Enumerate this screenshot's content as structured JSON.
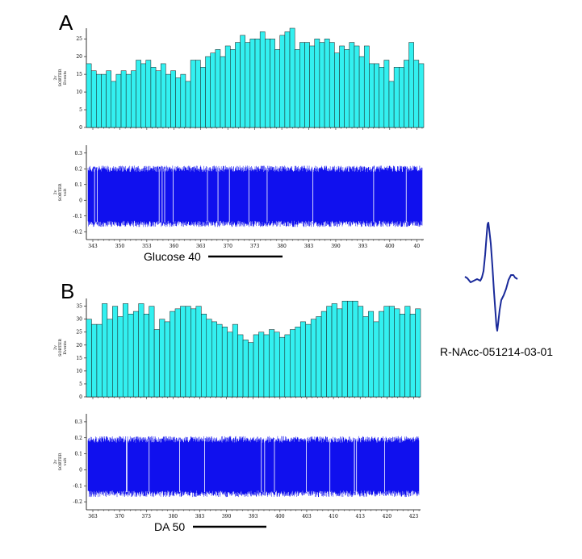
{
  "panel_a": {
    "label": "A",
    "stim_label": "Glucose 40",
    "hist_ylabel": [
      "2v",
      "SORTER",
      "Events"
    ],
    "trace_ylabel": [
      "2v",
      "SORTER",
      "volt"
    ]
  },
  "panel_b": {
    "label": "B",
    "stim_label": "DA 50",
    "hist_ylabel": [
      "2v",
      "SORTER",
      "Events"
    ],
    "trace_ylabel": [
      "2v",
      "SORTER",
      "volt"
    ]
  },
  "unit_label": "R-NAcc-051214-03-01",
  "colors": {
    "bar_fill": "#33f0f0",
    "bar_stroke": "#1a1a1a",
    "trace": "#1010ee",
    "waveform": "#1a2a9a",
    "axis": "#000000"
  },
  "chart_data": [
    {
      "type": "bar",
      "panel": "A",
      "ylabel": "Events",
      "ylim": [
        0,
        28
      ],
      "yticks": [
        0,
        5,
        10,
        15,
        20,
        25
      ],
      "xtick_labels": [
        "343",
        "350",
        "353",
        "360",
        "363",
        "370",
        "373",
        "380",
        "383",
        "390",
        "393",
        "400",
        "40"
      ],
      "values": [
        18,
        16,
        15,
        15,
        16,
        13,
        15,
        16,
        15,
        16,
        19,
        18,
        19,
        17,
        16,
        18,
        15,
        16,
        14,
        15,
        13,
        19,
        19,
        17,
        20,
        21,
        22,
        20,
        23,
        22,
        24,
        26,
        24,
        25,
        25,
        27,
        25,
        25,
        22,
        26,
        27,
        28,
        22,
        24,
        24,
        23,
        25,
        24,
        25,
        24,
        21,
        23,
        22,
        24,
        23,
        20,
        23,
        18,
        18,
        17,
        19,
        13,
        17,
        17,
        19,
        24,
        19,
        18
      ]
    },
    {
      "type": "line",
      "panel": "A",
      "ylabel": "volt",
      "ylim": [
        -0.25,
        0.35
      ],
      "yticks": [
        -0.2,
        -0.1,
        0.0,
        0.1,
        0.2,
        0.3
      ],
      "xtick_labels": [
        "343",
        "350",
        "353",
        "360",
        "363",
        "370",
        "373",
        "380",
        "383",
        "390",
        "393",
        "400",
        "40"
      ],
      "envelope_high": 0.2,
      "envelope_low": -0.15
    },
    {
      "type": "bar",
      "panel": "B",
      "ylabel": "Events",
      "ylim": [
        0,
        38
      ],
      "yticks": [
        0,
        5,
        10,
        15,
        20,
        25,
        30,
        35
      ],
      "xtick_labels": [
        "363",
        "370",
        "373",
        "380",
        "383",
        "390",
        "393",
        "400",
        "403",
        "410",
        "413",
        "420",
        "423"
      ],
      "values": [
        30,
        28,
        28,
        36,
        30,
        35,
        31,
        36,
        32,
        33,
        36,
        32,
        35,
        26,
        30,
        29,
        33,
        34,
        35,
        35,
        34,
        35,
        32,
        30,
        29,
        28,
        27,
        25,
        28,
        24,
        22,
        21,
        24,
        25,
        24,
        26,
        25,
        23,
        24,
        26,
        27,
        29,
        28,
        30,
        31,
        33,
        35,
        36,
        34,
        37,
        37,
        37,
        35,
        31,
        33,
        29,
        33,
        35,
        35,
        34,
        32,
        35,
        32,
        34
      ]
    },
    {
      "type": "line",
      "panel": "B",
      "ylabel": "volt",
      "ylim": [
        -0.25,
        0.35
      ],
      "yticks": [
        -0.2,
        -0.1,
        0.0,
        0.1,
        0.2,
        0.3
      ],
      "xtick_labels": [
        "363",
        "370",
        "373",
        "380",
        "383",
        "390",
        "393",
        "400",
        "403",
        "410",
        "413",
        "420",
        "423"
      ],
      "envelope_high": 0.19,
      "envelope_low": -0.15
    }
  ]
}
